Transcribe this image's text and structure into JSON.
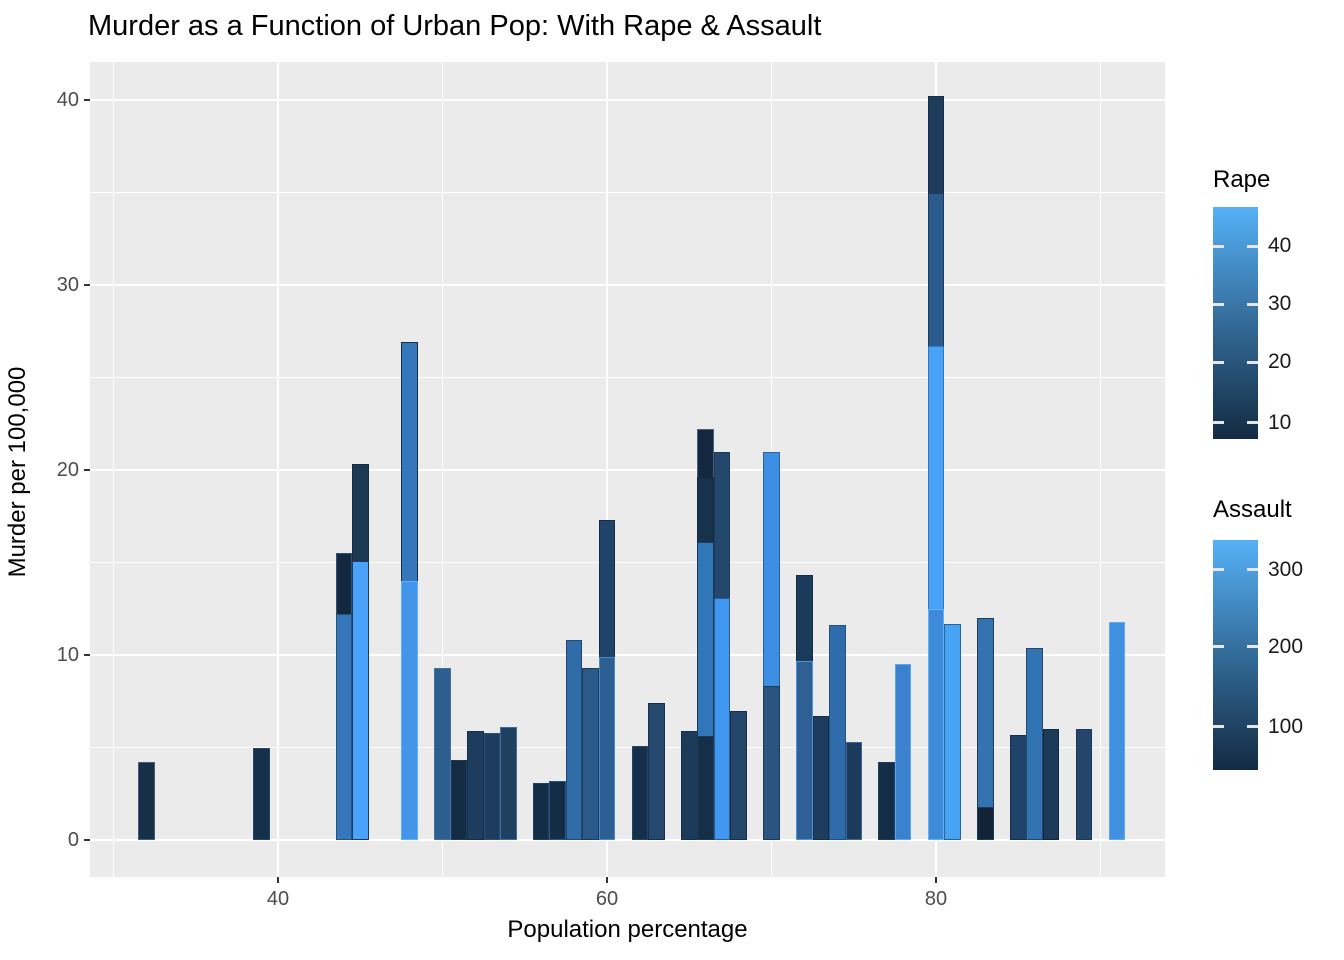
{
  "chart_data": {
    "type": "bar",
    "title": "Murder as a Function of Urban Pop: With Rape & Assault",
    "xlabel": "Population percentage",
    "ylabel": "Murder per 100,000",
    "x_tick_labels": [
      "40",
      "60",
      "80"
    ],
    "x_tick_values": [
      40,
      60,
      80
    ],
    "x_minor_values": [
      30,
      50,
      70,
      90
    ],
    "y_tick_labels": [
      "0",
      "10",
      "20",
      "30",
      "40"
    ],
    "y_tick_values": [
      0,
      10,
      20,
      30,
      40
    ],
    "y_minor_values": [
      5,
      15,
      25,
      35
    ],
    "xlim": [
      28.6,
      93.4
    ],
    "ylim": [
      -2,
      42.1
    ],
    "grid": true,
    "panel_bg": "#EBEBEB",
    "grid_color": "#FFFFFF",
    "gradient_low": "#132B43",
    "gradient_high": "#56B1F7",
    "bar_width": 1,
    "bars_note": "x = population percentage; layers listed back-to-front; v = murder rate top of each overlapping bar; fill mapped to Assault gradient, stroke mapped to Rape gradient",
    "bars": [
      {
        "x": 32,
        "layers": [
          {
            "v": 4.2,
            "fill": "#182f48",
            "stroke": "#3d5f7d"
          }
        ]
      },
      {
        "x": 39,
        "layers": [
          {
            "v": 5.0,
            "fill": "#15304a",
            "stroke": "#24466b"
          }
        ]
      },
      {
        "x": 44,
        "layers": [
          {
            "v": 15.5,
            "fill": "#14293f",
            "stroke": "#31516f"
          },
          {
            "v": 12.2,
            "fill": "#3478bb",
            "stroke": "#27517c"
          }
        ]
      },
      {
        "x": 45,
        "layers": [
          {
            "v": 20.3,
            "fill": "#1c3854",
            "stroke": "#152c43"
          },
          {
            "v": 15.1,
            "fill": "#4aa2fa",
            "stroke": "#1d3c5a"
          }
        ]
      },
      {
        "x": 48,
        "layers": [
          {
            "v": 26.9,
            "fill": "#3478bb",
            "stroke": "#16304b"
          },
          {
            "v": 14.0,
            "fill": "#4395ea",
            "stroke": "#5fb0f8"
          }
        ]
      },
      {
        "x": 50,
        "layers": [
          {
            "v": 9.3,
            "fill": "#2d5e92",
            "stroke": "#4a7096"
          }
        ]
      },
      {
        "x": 51,
        "layers": [
          {
            "v": 4.3,
            "fill": "#132c44",
            "stroke": "#1d3a57"
          }
        ]
      },
      {
        "x": 52,
        "layers": [
          {
            "v": 5.9,
            "fill": "#1e3d5e",
            "stroke": "#16304b"
          }
        ]
      },
      {
        "x": 53,
        "layers": [
          {
            "v": 5.8,
            "fill": "#1e3d5e",
            "stroke": "#2a4e74"
          }
        ]
      },
      {
        "x": 54,
        "layers": [
          {
            "v": 6.1,
            "fill": "#204061",
            "stroke": "#3d6c9c"
          }
        ]
      },
      {
        "x": 56,
        "layers": [
          {
            "v": 3.1,
            "fill": "#142d46",
            "stroke": "#204060"
          }
        ]
      },
      {
        "x": 57,
        "layers": [
          {
            "v": 3.2,
            "fill": "#142d46",
            "stroke": "#2c5480"
          }
        ]
      },
      {
        "x": 58,
        "layers": [
          {
            "v": 10.8,
            "fill": "#306da8",
            "stroke": "#24476c"
          }
        ]
      },
      {
        "x": 59,
        "layers": [
          {
            "v": 9.3,
            "fill": "#2b5a88",
            "stroke": "#1d3c5a"
          }
        ]
      },
      {
        "x": 60,
        "layers": [
          {
            "v": 17.3,
            "fill": "#21436a",
            "stroke": "#152e47"
          },
          {
            "v": 9.9,
            "fill": "#2c5f94",
            "stroke": "#4887c8"
          }
        ]
      },
      {
        "x": 62,
        "layers": [
          {
            "v": 5.1,
            "fill": "#16304b",
            "stroke": "#24466b"
          }
        ]
      },
      {
        "x": 63,
        "layers": [
          {
            "v": 7.4,
            "fill": "#24486e",
            "stroke": "#16304b"
          }
        ]
      },
      {
        "x": 65,
        "layers": [
          {
            "v": 5.9,
            "fill": "#1c3a59",
            "stroke": "#16304b"
          }
        ]
      },
      {
        "x": 66,
        "layers": [
          {
            "v": 22.2,
            "fill": "#14293f",
            "stroke": "#46627e"
          },
          {
            "v": 19.6,
            "fill": "#17324d",
            "stroke": "#14293f"
          },
          {
            "v": 16.1,
            "fill": "#3176b8",
            "stroke": "#1c3a59"
          },
          {
            "v": 5.6,
            "fill": "#152f48",
            "stroke": "#1d3a57"
          }
        ]
      },
      {
        "x": 67,
        "layers": [
          {
            "v": 21.0,
            "fill": "#24476c",
            "stroke": "#1b3a5c"
          },
          {
            "v": 13.1,
            "fill": "#3f97ef",
            "stroke": "#2c5c8f"
          }
        ]
      },
      {
        "x": 68,
        "layers": [
          {
            "v": 7.0,
            "fill": "#24466b",
            "stroke": "#152f48"
          }
        ]
      },
      {
        "x": 70,
        "layers": [
          {
            "v": 21.0,
            "fill": "#3d8fe3",
            "stroke": "#2d6096"
          },
          {
            "v": 8.3,
            "fill": "#2a5580",
            "stroke": "#1c3a59"
          }
        ]
      },
      {
        "x": 72,
        "layers": [
          {
            "v": 14.3,
            "fill": "#1c3a59",
            "stroke": "#142e47"
          },
          {
            "v": 9.7,
            "fill": "#2e6096",
            "stroke": "#4e94d6"
          }
        ]
      },
      {
        "x": 73,
        "layers": [
          {
            "v": 6.7,
            "fill": "#1e3d5e",
            "stroke": "#16304b"
          }
        ]
      },
      {
        "x": 74,
        "layers": [
          {
            "v": 11.6,
            "fill": "#2f6cab",
            "stroke": "#245080"
          }
        ]
      },
      {
        "x": 75,
        "layers": [
          {
            "v": 5.3,
            "fill": "#1c3a59",
            "stroke": "#3a6794"
          }
        ]
      },
      {
        "x": 77,
        "layers": [
          {
            "v": 4.2,
            "fill": "#142e47",
            "stroke": "#1e3d5e"
          }
        ]
      },
      {
        "x": 78,
        "layers": [
          {
            "v": 9.5,
            "fill": "#3a82cd",
            "stroke": "#5aa7f0"
          }
        ]
      },
      {
        "x": 80,
        "layers": [
          {
            "v": 40.2,
            "fill": "#1e3c5c",
            "stroke": "#16304b"
          },
          {
            "v": 35.0,
            "fill": "#2c5c8f",
            "stroke": "#1d3c5a"
          },
          {
            "v": 26.7,
            "fill": "#47a2f9",
            "stroke": "#3375b5"
          },
          {
            "v": 12.5,
            "fill": "#3f8ad8",
            "stroke": "#5fb0f8"
          }
        ]
      },
      {
        "x": 81,
        "layers": [
          {
            "v": 11.7,
            "fill": "#47a4f5",
            "stroke": "#2e6399"
          }
        ]
      },
      {
        "x": 83,
        "layers": [
          {
            "v": 12.0,
            "fill": "#3572b0",
            "stroke": "#1d3c5a"
          },
          {
            "v": 1.8,
            "fill": "#122338",
            "stroke": "#1d3a57"
          }
        ]
      },
      {
        "x": 85,
        "layers": [
          {
            "v": 5.7,
            "fill": "#21426a",
            "stroke": "#16304b"
          }
        ]
      },
      {
        "x": 86,
        "layers": [
          {
            "v": 10.4,
            "fill": "#3273b3",
            "stroke": "#24486e"
          }
        ]
      },
      {
        "x": 87,
        "layers": [
          {
            "v": 6.0,
            "fill": "#1c3a59",
            "stroke": "#0f2740"
          }
        ]
      },
      {
        "x": 89,
        "layers": [
          {
            "v": 6.0,
            "fill": "#24466b",
            "stroke": "#1c3a59"
          }
        ]
      },
      {
        "x": 91,
        "layers": [
          {
            "v": 11.8,
            "fill": "#4191e2",
            "stroke": "#5fa8f0"
          }
        ]
      }
    ],
    "legends": [
      {
        "title": "Rape",
        "tick_labels": [
          "40",
          "30",
          "20",
          "10"
        ]
      },
      {
        "title": "Assault",
        "tick_labels": [
          "300",
          "200",
          "100"
        ]
      }
    ]
  }
}
